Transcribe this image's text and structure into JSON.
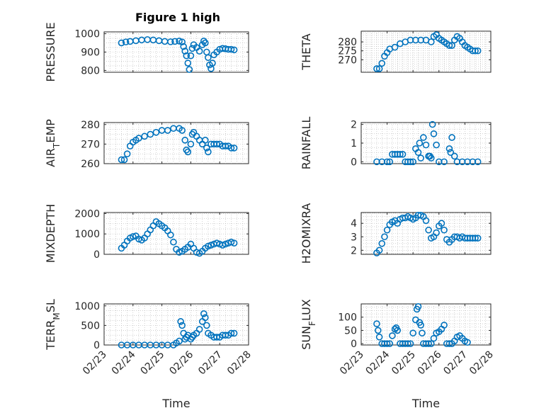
{
  "chart_data": {
    "type": "scatter",
    "title": "Figure 1 high",
    "xlabel": "Time",
    "x_ticks": [
      "02/23",
      "02/24",
      "02/25",
      "02/26",
      "02/27",
      "02/28"
    ],
    "marker_color": "#0072BD",
    "marker": "circle",
    "grid": true,
    "panels": [
      {
        "ylabel": "PRESSURE",
        "ylim": [
          790,
          1010
        ],
        "yticks": [
          800,
          900,
          1000
        ],
        "points": [
          [
            0.6,
            950
          ],
          [
            0.75,
            955
          ],
          [
            0.9,
            958
          ],
          [
            1.1,
            962
          ],
          [
            1.3,
            966
          ],
          [
            1.5,
            968
          ],
          [
            1.7,
            966
          ],
          [
            1.9,
            962
          ],
          [
            2.1,
            958
          ],
          [
            2.3,
            956
          ],
          [
            2.45,
            958
          ],
          [
            2.6,
            960
          ],
          [
            2.7,
            955
          ],
          [
            2.75,
            930
          ],
          [
            2.8,
            905
          ],
          [
            2.85,
            880
          ],
          [
            2.9,
            840
          ],
          [
            2.95,
            805
          ],
          [
            3.0,
            880
          ],
          [
            3.05,
            920
          ],
          [
            3.1,
            940
          ],
          [
            3.2,
            925
          ],
          [
            3.3,
            905
          ],
          [
            3.4,
            940
          ],
          [
            3.45,
            960
          ],
          [
            3.5,
            950
          ],
          [
            3.55,
            900
          ],
          [
            3.6,
            870
          ],
          [
            3.65,
            830
          ],
          [
            3.7,
            810
          ],
          [
            3.75,
            840
          ],
          [
            3.8,
            885
          ],
          [
            3.9,
            900
          ],
          [
            4.0,
            915
          ],
          [
            4.1,
            920
          ],
          [
            4.2,
            918
          ],
          [
            4.3,
            915
          ],
          [
            4.4,
            915
          ],
          [
            4.5,
            912
          ]
        ]
      },
      {
        "ylabel": "THETA",
        "ylim": [
          263,
          286
        ],
        "yticks": [
          270,
          275,
          280
        ],
        "points": [
          [
            0.6,
            265
          ],
          [
            0.7,
            265
          ],
          [
            0.8,
            268
          ],
          [
            0.9,
            272
          ],
          [
            1.0,
            274
          ],
          [
            1.1,
            276
          ],
          [
            1.3,
            277
          ],
          [
            1.5,
            279
          ],
          [
            1.7,
            280
          ],
          [
            1.9,
            281
          ],
          [
            2.1,
            281
          ],
          [
            2.3,
            281
          ],
          [
            2.5,
            281
          ],
          [
            2.7,
            280
          ],
          [
            2.8,
            283
          ],
          [
            2.9,
            284
          ],
          [
            3.0,
            282
          ],
          [
            3.1,
            281
          ],
          [
            3.2,
            280
          ],
          [
            3.3,
            279
          ],
          [
            3.4,
            278
          ],
          [
            3.5,
            278
          ],
          [
            3.6,
            281
          ],
          [
            3.7,
            283
          ],
          [
            3.8,
            282
          ],
          [
            3.9,
            280
          ],
          [
            4.0,
            278
          ],
          [
            4.1,
            277
          ],
          [
            4.2,
            276
          ],
          [
            4.3,
            275
          ],
          [
            4.4,
            275
          ],
          [
            4.5,
            275
          ]
        ]
      },
      {
        "ylabel": "AIR_TEMP",
        "ylim": [
          260,
          281
        ],
        "yticks": [
          260,
          270,
          280
        ],
        "points": [
          [
            0.6,
            262
          ],
          [
            0.7,
            262
          ],
          [
            0.8,
            265
          ],
          [
            0.9,
            269
          ],
          [
            1.0,
            271
          ],
          [
            1.1,
            272
          ],
          [
            1.2,
            273
          ],
          [
            1.4,
            274
          ],
          [
            1.6,
            275
          ],
          [
            1.8,
            276
          ],
          [
            2.0,
            277
          ],
          [
            2.2,
            277
          ],
          [
            2.4,
            278
          ],
          [
            2.6,
            278
          ],
          [
            2.7,
            277
          ],
          [
            2.8,
            272
          ],
          [
            2.85,
            267
          ],
          [
            2.9,
            266
          ],
          [
            3.0,
            270
          ],
          [
            3.05,
            275
          ],
          [
            3.1,
            276
          ],
          [
            3.2,
            274
          ],
          [
            3.3,
            272
          ],
          [
            3.4,
            270
          ],
          [
            3.5,
            272
          ],
          [
            3.55,
            268
          ],
          [
            3.6,
            266
          ],
          [
            3.7,
            270
          ],
          [
            3.8,
            270
          ],
          [
            3.9,
            270
          ],
          [
            4.0,
            270
          ],
          [
            4.1,
            269
          ],
          [
            4.2,
            269
          ],
          [
            4.3,
            269
          ],
          [
            4.4,
            268
          ],
          [
            4.5,
            268
          ]
        ]
      },
      {
        "ylabel": "RAINFALL",
        "ylim": [
          -0.1,
          2.1
        ],
        "yticks": [
          0,
          1,
          2
        ],
        "points": [
          [
            0.6,
            0
          ],
          [
            0.8,
            0
          ],
          [
            1.0,
            0
          ],
          [
            1.1,
            0
          ],
          [
            1.2,
            0.4
          ],
          [
            1.3,
            0.4
          ],
          [
            1.4,
            0.4
          ],
          [
            1.5,
            0.4
          ],
          [
            1.6,
            0.4
          ],
          [
            1.7,
            0
          ],
          [
            1.8,
            0
          ],
          [
            1.9,
            0
          ],
          [
            2.0,
            0
          ],
          [
            2.1,
            0.7
          ],
          [
            2.2,
            0.5
          ],
          [
            2.25,
            1.0
          ],
          [
            2.3,
            0.2
          ],
          [
            2.4,
            1.3
          ],
          [
            2.5,
            0.9
          ],
          [
            2.6,
            0.3
          ],
          [
            2.65,
            0.3
          ],
          [
            2.7,
            0.2
          ],
          [
            2.75,
            2.0
          ],
          [
            2.8,
            1.5
          ],
          [
            2.9,
            0.9
          ],
          [
            3.0,
            0
          ],
          [
            3.2,
            0
          ],
          [
            3.4,
            0.7
          ],
          [
            3.45,
            0.5
          ],
          [
            3.5,
            1.3
          ],
          [
            3.6,
            0.3
          ],
          [
            3.7,
            0
          ],
          [
            3.9,
            0
          ],
          [
            4.1,
            0
          ],
          [
            4.3,
            0
          ],
          [
            4.5,
            0
          ]
        ]
      },
      {
        "ylabel": "MIXDEPTH",
        "ylim": [
          0,
          2050
        ],
        "yticks": [
          0,
          1000,
          2000
        ],
        "points": [
          [
            0.6,
            300
          ],
          [
            0.7,
            450
          ],
          [
            0.8,
            650
          ],
          [
            0.9,
            800
          ],
          [
            1.0,
            870
          ],
          [
            1.1,
            900
          ],
          [
            1.2,
            750
          ],
          [
            1.3,
            700
          ],
          [
            1.4,
            800
          ],
          [
            1.5,
            1000
          ],
          [
            1.6,
            1200
          ],
          [
            1.7,
            1400
          ],
          [
            1.8,
            1600
          ],
          [
            1.9,
            1500
          ],
          [
            2.0,
            1400
          ],
          [
            2.1,
            1300
          ],
          [
            2.2,
            1150
          ],
          [
            2.3,
            950
          ],
          [
            2.4,
            600
          ],
          [
            2.5,
            250
          ],
          [
            2.6,
            100
          ],
          [
            2.7,
            150
          ],
          [
            2.8,
            250
          ],
          [
            2.9,
            350
          ],
          [
            3.0,
            500
          ],
          [
            3.1,
            300
          ],
          [
            3.2,
            100
          ],
          [
            3.3,
            50
          ],
          [
            3.4,
            150
          ],
          [
            3.5,
            300
          ],
          [
            3.6,
            400
          ],
          [
            3.7,
            450
          ],
          [
            3.8,
            500
          ],
          [
            3.9,
            550
          ],
          [
            4.0,
            500
          ],
          [
            4.1,
            450
          ],
          [
            4.2,
            500
          ],
          [
            4.3,
            550
          ],
          [
            4.4,
            600
          ],
          [
            4.5,
            550
          ]
        ]
      },
      {
        "ylabel": "H2OMIXRA",
        "ylim": [
          1.7,
          4.8
        ],
        "yticks": [
          2,
          3,
          4
        ],
        "points": [
          [
            0.6,
            1.8
          ],
          [
            0.7,
            2.0
          ],
          [
            0.8,
            2.5
          ],
          [
            0.9,
            3.0
          ],
          [
            1.0,
            3.5
          ],
          [
            1.1,
            3.9
          ],
          [
            1.2,
            4.1
          ],
          [
            1.3,
            4.2
          ],
          [
            1.4,
            4.0
          ],
          [
            1.5,
            4.3
          ],
          [
            1.6,
            4.4
          ],
          [
            1.7,
            4.4
          ],
          [
            1.8,
            4.5
          ],
          [
            1.9,
            4.4
          ],
          [
            2.0,
            4.3
          ],
          [
            2.1,
            4.4
          ],
          [
            2.2,
            4.6
          ],
          [
            2.3,
            4.6
          ],
          [
            2.4,
            4.5
          ],
          [
            2.5,
            4.2
          ],
          [
            2.6,
            3.5
          ],
          [
            2.7,
            2.9
          ],
          [
            2.8,
            3.0
          ],
          [
            2.9,
            3.3
          ],
          [
            3.0,
            3.8
          ],
          [
            3.1,
            4.0
          ],
          [
            3.2,
            3.5
          ],
          [
            3.3,
            2.8
          ],
          [
            3.4,
            2.6
          ],
          [
            3.5,
            2.8
          ],
          [
            3.6,
            3.0
          ],
          [
            3.7,
            3.0
          ],
          [
            3.8,
            2.9
          ],
          [
            3.9,
            3.0
          ],
          [
            4.0,
            2.9
          ],
          [
            4.1,
            2.9
          ],
          [
            4.2,
            2.9
          ],
          [
            4.3,
            2.9
          ],
          [
            4.4,
            2.9
          ],
          [
            4.5,
            2.9
          ]
        ]
      },
      {
        "ylabel": "TERR_MSL",
        "ylim": [
          0,
          1050
        ],
        "yticks": [
          0,
          500,
          1000
        ],
        "points": [
          [
            0.6,
            0
          ],
          [
            0.8,
            0
          ],
          [
            1.0,
            0
          ],
          [
            1.2,
            0
          ],
          [
            1.4,
            0
          ],
          [
            1.6,
            0
          ],
          [
            1.8,
            0
          ],
          [
            2.0,
            0
          ],
          [
            2.2,
            0
          ],
          [
            2.4,
            0
          ],
          [
            2.5,
            50
          ],
          [
            2.6,
            100
          ],
          [
            2.65,
            600
          ],
          [
            2.7,
            500
          ],
          [
            2.75,
            300
          ],
          [
            2.8,
            150
          ],
          [
            2.85,
            200
          ],
          [
            2.9,
            250
          ],
          [
            3.0,
            150
          ],
          [
            3.05,
            200
          ],
          [
            3.1,
            250
          ],
          [
            3.2,
            300
          ],
          [
            3.3,
            400
          ],
          [
            3.4,
            600
          ],
          [
            3.45,
            800
          ],
          [
            3.5,
            700
          ],
          [
            3.55,
            500
          ],
          [
            3.6,
            300
          ],
          [
            3.7,
            250
          ],
          [
            3.8,
            200
          ],
          [
            3.9,
            200
          ],
          [
            4.0,
            200
          ],
          [
            4.1,
            250
          ],
          [
            4.2,
            250
          ],
          [
            4.3,
            250
          ],
          [
            4.4,
            300
          ],
          [
            4.5,
            300
          ]
        ]
      },
      {
        "ylabel": "SUN_FLUX",
        "ylim": [
          -5,
          150
        ],
        "yticks": [
          0,
          50,
          100
        ],
        "points": [
          [
            0.6,
            75
          ],
          [
            0.65,
            50
          ],
          [
            0.7,
            25
          ],
          [
            0.8,
            0
          ],
          [
            0.9,
            0
          ],
          [
            1.0,
            0
          ],
          [
            1.1,
            0
          ],
          [
            1.2,
            30
          ],
          [
            1.3,
            55
          ],
          [
            1.35,
            60
          ],
          [
            1.4,
            50
          ],
          [
            1.5,
            0
          ],
          [
            1.6,
            0
          ],
          [
            1.7,
            0
          ],
          [
            1.8,
            0
          ],
          [
            1.9,
            0
          ],
          [
            2.0,
            40
          ],
          [
            2.1,
            90
          ],
          [
            2.15,
            130
          ],
          [
            2.2,
            140
          ],
          [
            2.25,
            80
          ],
          [
            2.3,
            70
          ],
          [
            2.35,
            40
          ],
          [
            2.4,
            0
          ],
          [
            2.5,
            0
          ],
          [
            2.6,
            0
          ],
          [
            2.7,
            0
          ],
          [
            2.8,
            20
          ],
          [
            2.9,
            40
          ],
          [
            3.0,
            45
          ],
          [
            3.1,
            55
          ],
          [
            3.2,
            70
          ],
          [
            3.3,
            0
          ],
          [
            3.4,
            0
          ],
          [
            3.5,
            0
          ],
          [
            3.6,
            10
          ],
          [
            3.7,
            25
          ],
          [
            3.8,
            30
          ],
          [
            3.9,
            20
          ],
          [
            4.0,
            10
          ],
          [
            4.1,
            5
          ]
        ]
      }
    ]
  }
}
